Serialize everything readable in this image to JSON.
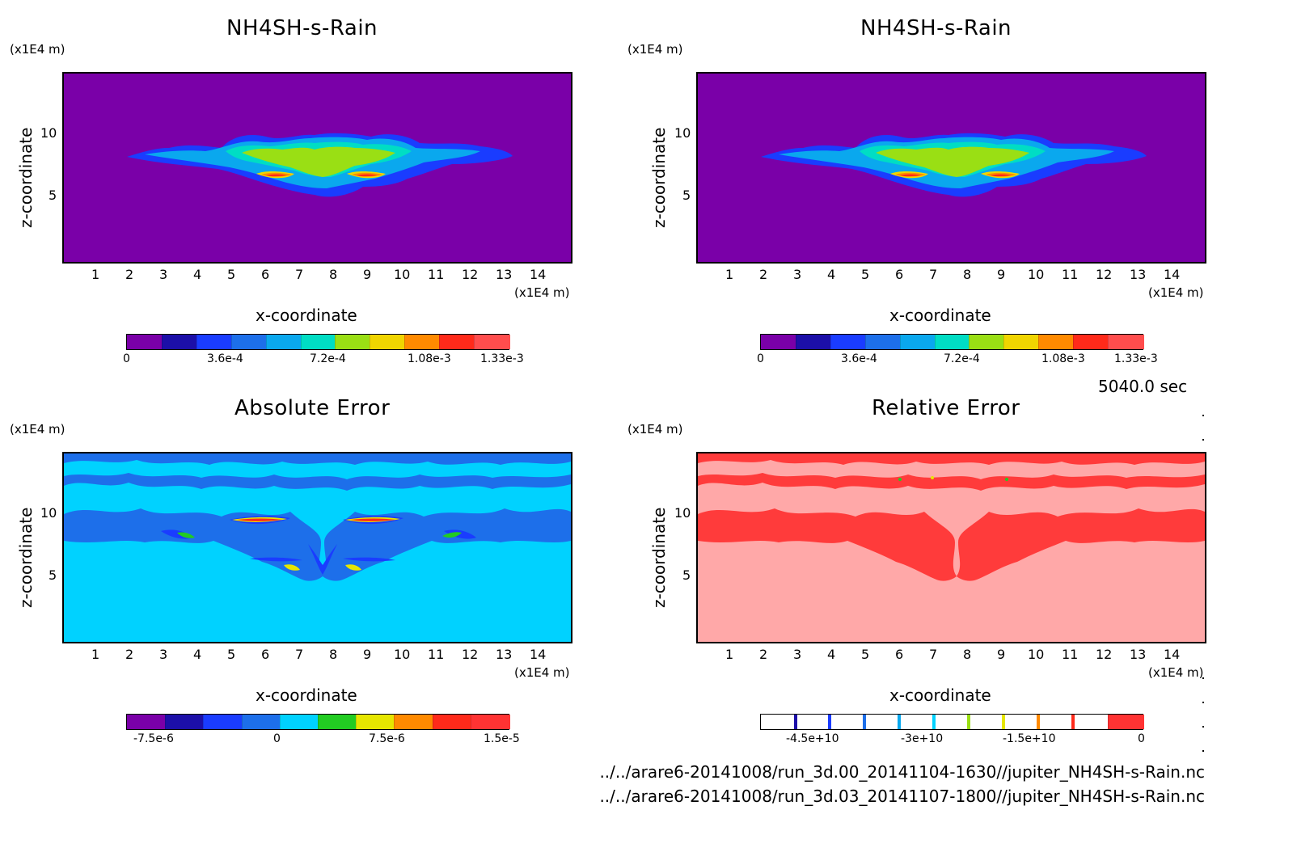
{
  "panels": [
    {
      "id": "p1",
      "title": "NH4SH-s-Rain",
      "z_unit": "(x1E4 m)",
      "x_unit": "(x1E4 m)",
      "xlabel": "x-coordinate",
      "ylabel": "z-coordinate",
      "x_ticks": [
        "1",
        "2",
        "3",
        "4",
        "5",
        "6",
        "7",
        "8",
        "9",
        "10",
        "11",
        "12",
        "13",
        "14"
      ],
      "y_ticks": [
        "5",
        "10"
      ],
      "colorbar": {
        "labels": [
          "0",
          "3.6e-4",
          "7.2e-4",
          "1.08e-3",
          "1.33e-3"
        ],
        "colors": [
          "#7a00a8",
          "#1c0fa8",
          "#1a3cff",
          "#1d6fea",
          "#0aa8ee",
          "#00ddc4",
          "#9adf14",
          "#f0d500",
          "#ff8a00",
          "#ff2a1a",
          "#ff4d4d"
        ]
      }
    },
    {
      "id": "p2",
      "title": "NH4SH-s-Rain",
      "z_unit": "(x1E4 m)",
      "x_unit": "(x1E4 m)",
      "xlabel": "x-coordinate",
      "ylabel": "z-coordinate",
      "x_ticks": [
        "1",
        "2",
        "3",
        "4",
        "5",
        "6",
        "7",
        "8",
        "9",
        "10",
        "11",
        "12",
        "13",
        "14"
      ],
      "y_ticks": [
        "5",
        "10"
      ],
      "colorbar": {
        "labels": [
          "0",
          "3.6e-4",
          "7.2e-4",
          "1.08e-3",
          "1.33e-3"
        ],
        "colors": [
          "#7a00a8",
          "#1c0fa8",
          "#1a3cff",
          "#1d6fea",
          "#0aa8ee",
          "#00ddc4",
          "#9adf14",
          "#f0d500",
          "#ff8a00",
          "#ff2a1a",
          "#ff4d4d"
        ]
      }
    },
    {
      "id": "p3",
      "title": "Absolute Error",
      "z_unit": "(x1E4 m)",
      "x_unit": "(x1E4 m)",
      "xlabel": "x-coordinate",
      "ylabel": "z-coordinate",
      "x_ticks": [
        "1",
        "2",
        "3",
        "4",
        "5",
        "6",
        "7",
        "8",
        "9",
        "10",
        "11",
        "12",
        "13",
        "14"
      ],
      "y_ticks": [
        "5",
        "10"
      ],
      "colorbar": {
        "labels": [
          "-7.5e-6",
          "0",
          "7.5e-6",
          "1.5e-5"
        ],
        "colors": [
          "#7a00a8",
          "#1c0fa8",
          "#1a3cff",
          "#1d6fea",
          "#00d2ff",
          "#22cc22",
          "#e6e600",
          "#ff8a00",
          "#ff2a1a",
          "#ff3333"
        ]
      }
    },
    {
      "id": "p4",
      "title": "Relative Error",
      "z_unit": "(x1E4 m)",
      "x_unit": "(x1E4 m)",
      "xlabel": "x-coordinate",
      "ylabel": "z-coordinate",
      "x_ticks": [
        "1",
        "2",
        "3",
        "4",
        "5",
        "6",
        "7",
        "8",
        "9",
        "10",
        "11",
        "12",
        "13",
        "14"
      ],
      "y_ticks": [
        "5",
        "10"
      ],
      "colorbar": {
        "labels": [
          "-4.5e+10",
          "-3e+10",
          "-1.5e+10",
          "0"
        ],
        "colors": [
          "#ffffff",
          "#ffffff",
          "#ffffff",
          "#ffffff",
          "#ffffff",
          "#ffffff",
          "#ffffff",
          "#ffffff",
          "#ffffff",
          "#ffffff",
          "#ff3333"
        ],
        "marks": [
          "#1c0fa8",
          "#1a3cff",
          "#1d6fea",
          "#0aa8ee",
          "#00d2ff",
          "#9adf14",
          "#e6e600",
          "#ff8a00",
          "#ff2a1a"
        ]
      }
    }
  ],
  "time_label": "5040.0 sec",
  "file_paths": [
    "../../arare6-20141008/run_3d.00_20141104-1630//jupiter_NH4SH-s-Rain.nc",
    "../../arare6-20141008/run_3d.03_20141107-1800//jupiter_NH4SH-s-Rain.nc"
  ],
  "chart_data": [
    {
      "type": "heatmap",
      "title": "NH4SH-s-Rain",
      "xlabel": "x-coordinate",
      "ylabel": "z-coordinate",
      "xlim": [
        0,
        15
      ],
      "ylim": [
        0,
        15
      ],
      "x_unit": "(x1E4 m)",
      "z_unit": "(x1E4 m)",
      "colorbar_ticks": [
        "0",
        "3.6e-4",
        "7.2e-4",
        "1.08e-3",
        "1.33e-3"
      ]
    },
    {
      "type": "heatmap",
      "title": "NH4SH-s-Rain",
      "xlabel": "x-coordinate",
      "ylabel": "z-coordinate",
      "xlim": [
        0,
        15
      ],
      "ylim": [
        0,
        15
      ],
      "x_unit": "(x1E4 m)",
      "z_unit": "(x1E4 m)",
      "colorbar_ticks": [
        "0",
        "3.6e-4",
        "7.2e-4",
        "1.08e-3",
        "1.33e-3"
      ]
    },
    {
      "type": "heatmap",
      "title": "Absolute Error",
      "xlabel": "x-coordinate",
      "ylabel": "z-coordinate",
      "xlim": [
        0,
        15
      ],
      "ylim": [
        0,
        15
      ],
      "x_unit": "(x1E4 m)",
      "z_unit": "(x1E4 m)",
      "colorbar_ticks": [
        "-7.5e-6",
        "0",
        "7.5e-6",
        "1.5e-5"
      ]
    },
    {
      "type": "heatmap",
      "title": "Relative Error",
      "xlabel": "x-coordinate",
      "ylabel": "z-coordinate",
      "xlim": [
        0,
        15
      ],
      "ylim": [
        0,
        15
      ],
      "x_unit": "(x1E4 m)",
      "z_unit": "(x1E4 m)",
      "colorbar_ticks": [
        "-4.5e+10",
        "-3e+10",
        "-1.5e+10",
        "0"
      ]
    }
  ]
}
